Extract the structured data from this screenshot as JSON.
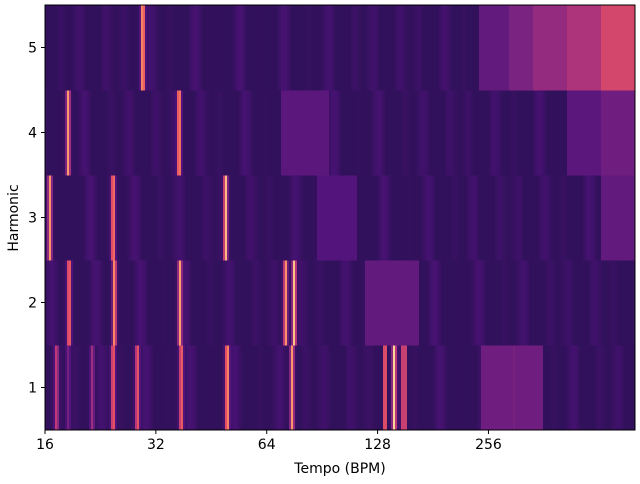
{
  "chart_data": {
    "type": "heatmap",
    "title": "",
    "xlabel": "Tempo (BPM)",
    "ylabel": "Harmonic",
    "x_scale": "log2",
    "xlim": [
      16,
      640
    ],
    "x_ticks": [
      "16",
      "32",
      "64",
      "128",
      "256"
    ],
    "x_tick_values": [
      16,
      32,
      64,
      128,
      256
    ],
    "y_ticks": [
      "1",
      "2",
      "3",
      "4",
      "5"
    ],
    "y_tick_values": [
      1,
      2,
      3,
      4,
      5
    ],
    "colormap": "magma",
    "colormap_stops": [
      "#000004",
      "#1c1044",
      "#4f127b",
      "#812581",
      "#b5367a",
      "#e55064",
      "#fb8761",
      "#fec287",
      "#fcfdbf"
    ],
    "background_level": 0.18,
    "rows": [
      {
        "harmonic": 1,
        "peaks": [
          {
            "bpm": 17.2,
            "level": 0.55
          },
          {
            "bpm": 18.5,
            "level": 0.35
          },
          {
            "bpm": 21.5,
            "level": 0.45
          },
          {
            "bpm": 24.5,
            "level": 0.7
          },
          {
            "bpm": 28.5,
            "level": 0.68
          },
          {
            "bpm": 37.5,
            "level": 0.72
          },
          {
            "bpm": 50,
            "level": 0.82
          },
          {
            "bpm": 75,
            "level": 0.78
          },
          {
            "bpm": 142,
            "level": 0.92
          },
          {
            "bpm": 300,
            "level": 0.35
          }
        ],
        "bands": [
          {
            "from": 132,
            "to": 135,
            "level": 0.6
          },
          {
            "from": 148,
            "to": 154,
            "level": 0.55
          },
          {
            "from": 245,
            "to": 360,
            "level": 0.33
          }
        ]
      },
      {
        "harmonic": 2,
        "peaks": [
          {
            "bpm": 18.6,
            "level": 0.75
          },
          {
            "bpm": 24.7,
            "level": 0.78
          },
          {
            "bpm": 37.2,
            "level": 0.8
          },
          {
            "bpm": 72,
            "level": 0.8
          },
          {
            "bpm": 76,
            "level": 0.88
          }
        ],
        "bands": [
          {
            "from": 118,
            "to": 165,
            "level": 0.3
          }
        ]
      },
      {
        "harmonic": 3,
        "peaks": [
          {
            "bpm": 16.5,
            "level": 0.78
          },
          {
            "bpm": 24.5,
            "level": 0.78
          },
          {
            "bpm": 49.5,
            "level": 0.88
          }
        ],
        "bands": [
          {
            "from": 88,
            "to": 112,
            "level": 0.26
          },
          {
            "from": 520,
            "to": 640,
            "level": 0.3
          }
        ]
      },
      {
        "harmonic": 4,
        "peaks": [
          {
            "bpm": 18.5,
            "level": 0.8
          },
          {
            "bpm": 37,
            "level": 0.82
          }
        ],
        "bands": [
          {
            "from": 70,
            "to": 95,
            "level": 0.28
          },
          {
            "from": 420,
            "to": 520,
            "level": 0.28
          },
          {
            "from": 520,
            "to": 640,
            "level": 0.33
          }
        ]
      },
      {
        "harmonic": 5,
        "peaks": [
          {
            "bpm": 29.5,
            "level": 0.85
          }
        ],
        "bands": [
          {
            "from": 240,
            "to": 290,
            "level": 0.3
          },
          {
            "from": 290,
            "to": 340,
            "level": 0.36
          },
          {
            "from": 340,
            "to": 420,
            "level": 0.42
          },
          {
            "from": 420,
            "to": 520,
            "level": 0.48
          },
          {
            "from": 520,
            "to": 640,
            "level": 0.58
          }
        ]
      }
    ]
  }
}
